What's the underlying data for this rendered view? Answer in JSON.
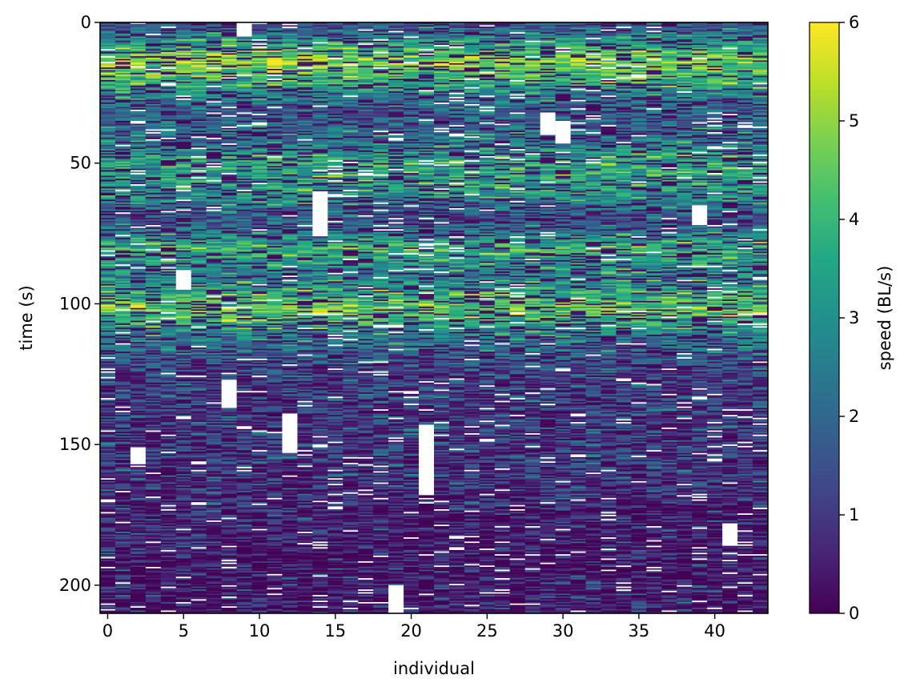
{
  "chart_data": {
    "type": "heatmap",
    "title": "",
    "xlabel": "individual",
    "ylabel": "time (s)",
    "xlim": [
      -0.5,
      43.5
    ],
    "ylim": [
      210,
      0
    ],
    "y_inverted": true,
    "x_ticks": [
      0,
      5,
      10,
      15,
      20,
      25,
      30,
      35,
      40
    ],
    "x_tick_labels": [
      "0",
      "5",
      "10",
      "15",
      "20",
      "25",
      "30",
      "35",
      "40"
    ],
    "y_ticks": [
      0,
      50,
      100,
      150,
      200
    ],
    "y_tick_labels": [
      "0",
      "50",
      "100",
      "150",
      "200"
    ],
    "n_individuals": 44,
    "time_range": [
      0,
      210
    ],
    "colormap": "viridis",
    "missing_color": "#ffffff",
    "colorbar": {
      "label": "speed (BL/s)",
      "range": [
        0,
        6
      ],
      "ticks": [
        0,
        1,
        2,
        3,
        4,
        5,
        6
      ],
      "tick_labels": [
        "0",
        "1",
        "2",
        "3",
        "4",
        "5",
        "6"
      ]
    },
    "mean_speed_profile": [
      {
        "t": 0,
        "v": 1.5
      },
      {
        "t": 8,
        "v": 3.5
      },
      {
        "t": 14,
        "v": 5.0
      },
      {
        "t": 22,
        "v": 3.6
      },
      {
        "t": 30,
        "v": 1.8
      },
      {
        "t": 40,
        "v": 2.2
      },
      {
        "t": 50,
        "v": 3.6
      },
      {
        "t": 60,
        "v": 3.2
      },
      {
        "t": 70,
        "v": 1.5
      },
      {
        "t": 80,
        "v": 3.8
      },
      {
        "t": 90,
        "v": 2.6
      },
      {
        "t": 102,
        "v": 4.6
      },
      {
        "t": 112,
        "v": 2.4
      },
      {
        "t": 125,
        "v": 1.3
      },
      {
        "t": 140,
        "v": 1.2
      },
      {
        "t": 155,
        "v": 1.1
      },
      {
        "t": 170,
        "v": 0.8
      },
      {
        "t": 185,
        "v": 0.5
      },
      {
        "t": 210,
        "v": 0.4
      }
    ],
    "missing_blocks": [
      {
        "individual": 14,
        "t0": 60,
        "t1": 76
      },
      {
        "individual": 8,
        "t0": 127,
        "t1": 137
      },
      {
        "individual": 21,
        "t0": 143,
        "t1": 168
      },
      {
        "individual": 29,
        "t0": 32,
        "t1": 40
      },
      {
        "individual": 30,
        "t0": 35,
        "t1": 43
      },
      {
        "individual": 5,
        "t0": 88,
        "t1": 95
      },
      {
        "individual": 12,
        "t0": 139,
        "t1": 153
      },
      {
        "individual": 2,
        "t0": 151,
        "t1": 157
      },
      {
        "individual": 41,
        "t0": 178,
        "t1": 186
      },
      {
        "individual": 9,
        "t0": 0,
        "t1": 5
      },
      {
        "individual": 39,
        "t0": 65,
        "t1": 72
      },
      {
        "individual": 19,
        "t0": 200,
        "t1": 210
      }
    ]
  }
}
